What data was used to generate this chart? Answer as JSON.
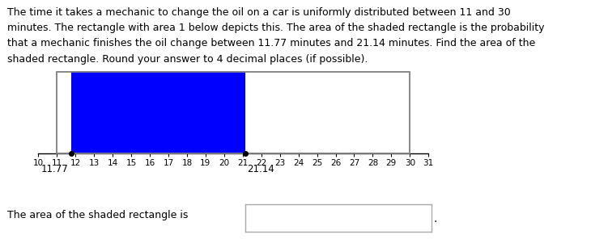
{
  "title_lines": [
    "The time it takes a mechanic to change the oil on a car is uniformly distributed between 11 and 30",
    "minutes. The rectangle with area 1 below depicts this. The area of the shaded rectangle is the probability",
    "that a mechanic finishes the oil change between 11.77 minutes and 21.14 minutes. Find the area of the",
    "shaded rectangle. Round your answer to 4 decimal places (if possible)."
  ],
  "dist_lower": 11,
  "dist_upper": 30,
  "shade_lower": 11.77,
  "shade_upper": 21.14,
  "rect_color": "#0000ff",
  "outline_color": "#888888",
  "bg_color": "#ffffff",
  "axis_min": 10,
  "axis_max": 31,
  "label_lower": "11.77",
  "label_upper": "21.14",
  "bottom_text": "The area of the shaded rectangle is",
  "title_fontsize": 9.0,
  "label_fontsize": 8.5,
  "tick_fontsize": 7.5
}
